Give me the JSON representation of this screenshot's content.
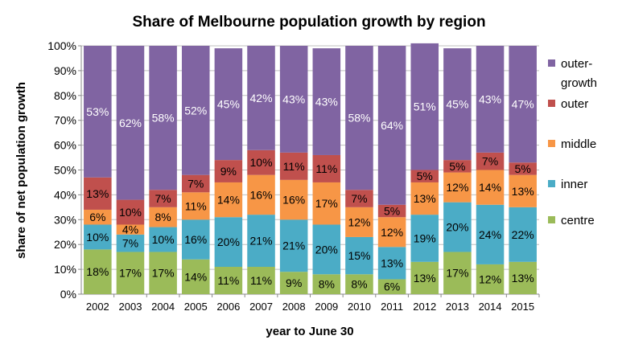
{
  "chart_data": {
    "type": "bar",
    "stacked": true,
    "title": "Share of Melbourne population growth by region",
    "xlabel": "year to June 30",
    "ylabel": "share of net population growth",
    "ylim": [
      0,
      100
    ],
    "yticks": [
      "0%",
      "10%",
      "20%",
      "30%",
      "40%",
      "50%",
      "60%",
      "70%",
      "80%",
      "90%",
      "100%"
    ],
    "grid": true,
    "legend_position": "right",
    "categories": [
      "2002",
      "2003",
      "2004",
      "2005",
      "2006",
      "2007",
      "2008",
      "2009",
      "2010",
      "2011",
      "2012",
      "2013",
      "2014",
      "2015"
    ],
    "series": [
      {
        "name": "centre",
        "color": "#9BBB59",
        "values": [
          18,
          17,
          17,
          14,
          11,
          11,
          9,
          8,
          8,
          6,
          13,
          17,
          12,
          13
        ]
      },
      {
        "name": "inner",
        "color": "#4BACC6",
        "values": [
          10,
          7,
          10,
          16,
          20,
          21,
          21,
          20,
          15,
          13,
          19,
          20,
          24,
          22
        ]
      },
      {
        "name": "middle",
        "color": "#F79646",
        "values": [
          6,
          4,
          8,
          11,
          14,
          16,
          16,
          17,
          12,
          12,
          13,
          12,
          14,
          13
        ]
      },
      {
        "name": "outer",
        "color": "#C0504D",
        "values": [
          13,
          10,
          7,
          7,
          9,
          10,
          11,
          11,
          7,
          5,
          5,
          5,
          7,
          5
        ]
      },
      {
        "name": "outer-growth",
        "color": "#8064A2",
        "values": [
          53,
          62,
          58,
          52,
          45,
          42,
          43,
          43,
          58,
          64,
          51,
          45,
          43,
          47
        ]
      }
    ]
  }
}
